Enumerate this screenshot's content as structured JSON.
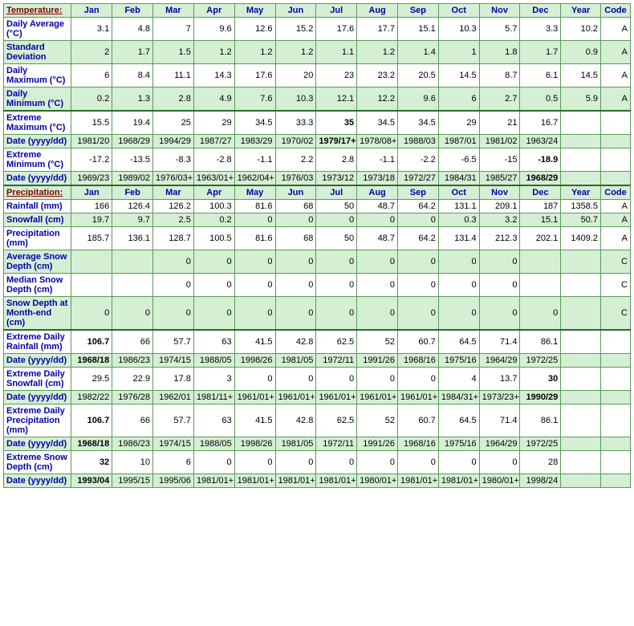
{
  "columns": [
    "Jan",
    "Feb",
    "Mar",
    "Apr",
    "May",
    "Jun",
    "Jul",
    "Aug",
    "Sep",
    "Oct",
    "Nov",
    "Dec",
    "Year",
    "Code"
  ],
  "sections": [
    {
      "title": "Temperature:",
      "rows": [
        {
          "label": "Daily Average (°C)",
          "vals": [
            "3.1",
            "4.8",
            "7",
            "9.6",
            "12.6",
            "15.2",
            "17.6",
            "17.7",
            "15.1",
            "10.3",
            "5.7",
            "3.3",
            "10.2",
            "A"
          ],
          "alt": false,
          "bold": []
        },
        {
          "label": "Standard Deviation",
          "vals": [
            "2",
            "1.7",
            "1.5",
            "1.2",
            "1.2",
            "1.2",
            "1.1",
            "1.2",
            "1.4",
            "1",
            "1.8",
            "1.7",
            "0.9",
            "A"
          ],
          "alt": true,
          "bold": []
        },
        {
          "label": "Daily Maximum (°C)",
          "vals": [
            "6",
            "8.4",
            "11.1",
            "14.3",
            "17.6",
            "20",
            "23",
            "23.2",
            "20.5",
            "14.5",
            "8.7",
            "6.1",
            "14.5",
            "A"
          ],
          "alt": false,
          "bold": []
        },
        {
          "label": "Daily Minimum (°C)",
          "vals": [
            "0.2",
            "1.3",
            "2.8",
            "4.9",
            "7.6",
            "10.3",
            "12.1",
            "12.2",
            "9.6",
            "6",
            "2.7",
            "0.5",
            "5.9",
            "A"
          ],
          "alt": true,
          "bold": []
        },
        {
          "label": "Extreme Maximum (°C)",
          "vals": [
            "15.5",
            "19.4",
            "25",
            "29",
            "34.5",
            "33.3",
            "35",
            "34.5",
            "34.5",
            "29",
            "21",
            "16.7",
            "",
            ""
          ],
          "alt": false,
          "bold": [
            6
          ],
          "thick": true
        },
        {
          "label": "Date (yyyy/dd)",
          "vals": [
            "1981/20",
            "1968/29",
            "1994/29",
            "1987/27",
            "1983/29",
            "1970/02",
            "1979/17+",
            "1978/08+",
            "1988/03",
            "1987/01",
            "1981/02",
            "1963/24",
            "",
            ""
          ],
          "alt": true,
          "bold": [
            6
          ]
        },
        {
          "label": "Extreme Minimum (°C)",
          "vals": [
            "-17.2",
            "-13.5",
            "-8.3",
            "-2.8",
            "-1.1",
            "2.2",
            "2.8",
            "-1.1",
            "-2.2",
            "-6.5",
            "-15",
            "-18.9",
            "",
            ""
          ],
          "alt": false,
          "bold": [
            11
          ]
        },
        {
          "label": "Date (yyyy/dd)",
          "vals": [
            "1969/23",
            "1989/02",
            "1976/03+",
            "1963/01+",
            "1962/04+",
            "1976/03",
            "1973/12",
            "1973/18",
            "1972/27",
            "1984/31",
            "1985/27",
            "1968/29",
            "",
            ""
          ],
          "alt": true,
          "bold": [
            11
          ]
        }
      ]
    },
    {
      "title": "Precipitation:",
      "rows": [
        {
          "label": "Rainfall (mm)",
          "vals": [
            "166",
            "126.4",
            "126.2",
            "100.3",
            "81.6",
            "68",
            "50",
            "48.7",
            "64.2",
            "131.1",
            "209.1",
            "187",
            "1358.5",
            "A"
          ],
          "alt": false,
          "bold": []
        },
        {
          "label": "Snowfall (cm)",
          "vals": [
            "19.7",
            "9.7",
            "2.5",
            "0.2",
            "0",
            "0",
            "0",
            "0",
            "0",
            "0.3",
            "3.2",
            "15.1",
            "50.7",
            "A"
          ],
          "alt": true,
          "bold": []
        },
        {
          "label": "Precipitation (mm)",
          "vals": [
            "185.7",
            "136.1",
            "128.7",
            "100.5",
            "81.6",
            "68",
            "50",
            "48.7",
            "64.2",
            "131.4",
            "212.3",
            "202.1",
            "1409.2",
            "A"
          ],
          "alt": false,
          "bold": []
        },
        {
          "label": "Average Snow Depth (cm)",
          "vals": [
            "",
            "",
            "0",
            "0",
            "0",
            "0",
            "0",
            "0",
            "0",
            "0",
            "0",
            "",
            "",
            "C"
          ],
          "alt": true,
          "bold": []
        },
        {
          "label": "Median Snow Depth (cm)",
          "vals": [
            "",
            "",
            "0",
            "0",
            "0",
            "0",
            "0",
            "0",
            "0",
            "0",
            "0",
            "",
            "",
            "C"
          ],
          "alt": false,
          "bold": []
        },
        {
          "label": "Snow Depth at Month-end (cm)",
          "vals": [
            "0",
            "0",
            "0",
            "0",
            "0",
            "0",
            "0",
            "0",
            "0",
            "0",
            "0",
            "0",
            "",
            "C"
          ],
          "alt": true,
          "bold": []
        },
        {
          "label": "Extreme Daily Rainfall (mm)",
          "vals": [
            "106.7",
            "66",
            "57.7",
            "63",
            "41.5",
            "42.8",
            "62.5",
            "52",
            "60.7",
            "64.5",
            "71.4",
            "86.1",
            "",
            ""
          ],
          "alt": false,
          "bold": [
            0
          ],
          "thick": true
        },
        {
          "label": "Date (yyyy/dd)",
          "vals": [
            "1968/18",
            "1986/23",
            "1974/15",
            "1988/05",
            "1998/26",
            "1981/05",
            "1972/11",
            "1991/26",
            "1968/16",
            "1975/16",
            "1964/29",
            "1972/25",
            "",
            ""
          ],
          "alt": true,
          "bold": [
            0
          ]
        },
        {
          "label": "Extreme Daily Snowfall (cm)",
          "vals": [
            "29.5",
            "22.9",
            "17.8",
            "3",
            "0",
            "0",
            "0",
            "0",
            "0",
            "4",
            "13.7",
            "30",
            "",
            ""
          ],
          "alt": false,
          "bold": [
            11
          ]
        },
        {
          "label": "Date (yyyy/dd)",
          "vals": [
            "1982/22",
            "1976/28",
            "1962/01",
            "1981/11+",
            "1961/01+",
            "1961/01+",
            "1961/01+",
            "1961/01+",
            "1961/01+",
            "1984/31+",
            "1973/23+",
            "1990/29",
            "",
            ""
          ],
          "alt": true,
          "bold": [
            11
          ]
        },
        {
          "label": "Extreme Daily Precipitation (mm)",
          "vals": [
            "106.7",
            "66",
            "57.7",
            "63",
            "41.5",
            "42.8",
            "62.5",
            "52",
            "60.7",
            "64.5",
            "71.4",
            "86.1",
            "",
            ""
          ],
          "alt": false,
          "bold": [
            0
          ]
        },
        {
          "label": "Date (yyyy/dd)",
          "vals": [
            "1968/18",
            "1986/23",
            "1974/15",
            "1988/05",
            "1998/26",
            "1981/05",
            "1972/11",
            "1991/26",
            "1968/16",
            "1975/16",
            "1964/29",
            "1972/25",
            "",
            ""
          ],
          "alt": true,
          "bold": [
            0
          ]
        },
        {
          "label": "Extreme Snow Depth (cm)",
          "vals": [
            "32",
            "10",
            "6",
            "0",
            "0",
            "0",
            "0",
            "0",
            "0",
            "0",
            "0",
            "28",
            "",
            ""
          ],
          "alt": false,
          "bold": [
            0
          ]
        },
        {
          "label": "Date (yyyy/dd)",
          "vals": [
            "1993/04",
            "1995/15",
            "1995/06",
            "1981/01+",
            "1981/01+",
            "1981/01+",
            "1981/01+",
            "1980/01+",
            "1981/01+",
            "1981/01+",
            "1980/01+",
            "1998/24",
            "",
            ""
          ],
          "alt": true,
          "bold": [
            0
          ]
        }
      ]
    }
  ]
}
